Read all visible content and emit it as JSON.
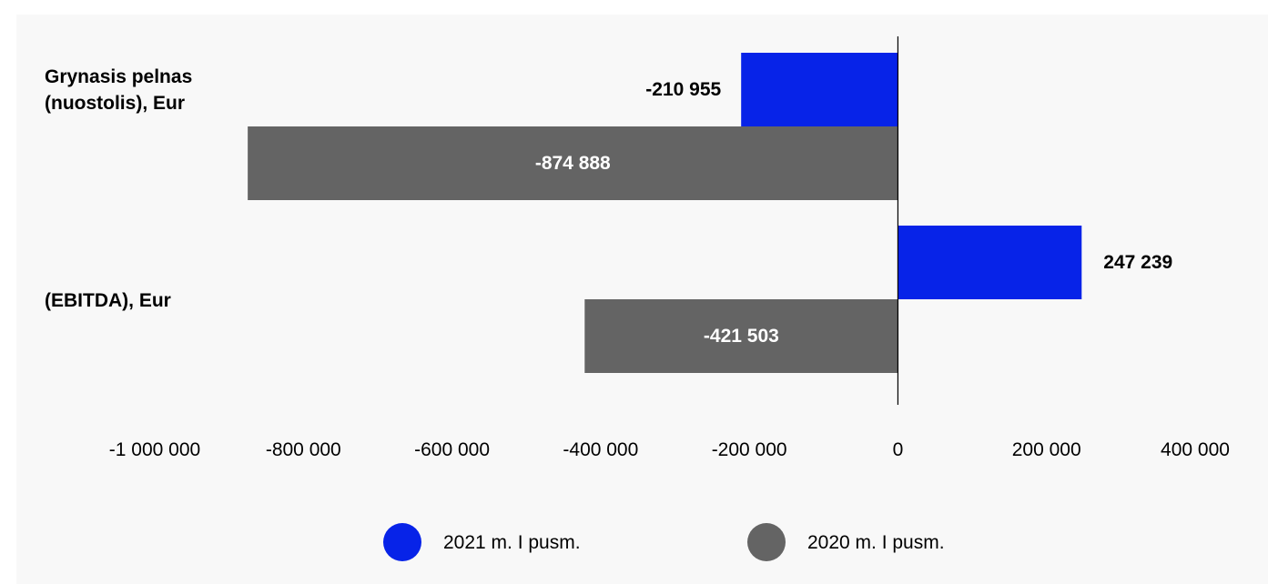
{
  "chart_data": {
    "type": "bar",
    "orientation": "horizontal",
    "categories": [
      [
        "Grynasis pelnas",
        "(nuostolis), Eur"
      ],
      [
        "(EBITDA), Eur"
      ]
    ],
    "series": [
      {
        "name": "2021 m. I pusm.",
        "color": "#0723e8",
        "values": [
          -210955,
          247239
        ],
        "labels": [
          "-210 955",
          "247 239"
        ]
      },
      {
        "name": "2020 m. I pusm.",
        "color": "#646464",
        "values": [
          -874888,
          -421503
        ],
        "labels": [
          "-874 888",
          "-421 503"
        ]
      }
    ],
    "xlim": [
      -1000000,
      400000
    ],
    "xticks": [
      -1000000,
      -800000,
      -600000,
      -400000,
      -200000,
      0,
      200000,
      400000
    ],
    "xtick_labels": [
      "-1 000 000",
      "-800 000",
      "-600 000",
      "-400 000",
      "-200 000",
      "0",
      "200 000",
      "400 000"
    ],
    "grid": false,
    "legend_position": "bottom"
  }
}
